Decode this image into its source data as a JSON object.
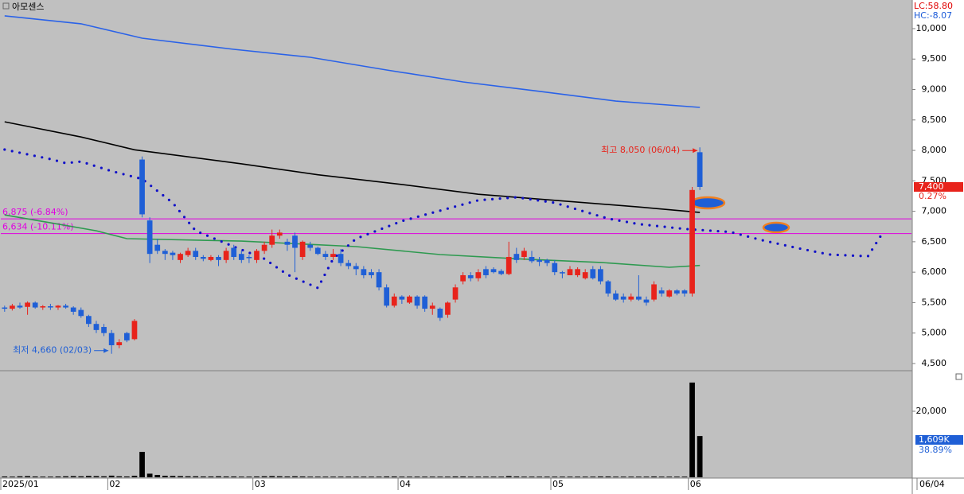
{
  "chart_data": {
    "type": "candlestick",
    "title": "아모센스",
    "legend": {
      "lc": "LC:58.80",
      "hc": "HC:-8.07",
      "lc_color": "#e00000",
      "hc_color": "#1a5ad8"
    },
    "categories": [
      "2025/01",
      null,
      null,
      null,
      null,
      null,
      null,
      null,
      null,
      null,
      null,
      null,
      null,
      null,
      "02",
      null,
      null,
      null,
      null,
      null,
      null,
      null,
      null,
      null,
      null,
      null,
      null,
      null,
      null,
      null,
      null,
      null,
      null,
      "03",
      null,
      null,
      null,
      null,
      null,
      null,
      null,
      null,
      null,
      null,
      null,
      null,
      null,
      null,
      null,
      null,
      null,
      null,
      "04",
      null,
      null,
      null,
      null,
      null,
      null,
      null,
      null,
      null,
      null,
      null,
      null,
      null,
      null,
      null,
      null,
      null,
      null,
      null,
      "05",
      null,
      null,
      null,
      null,
      null,
      null,
      null,
      null,
      null,
      null,
      null,
      null,
      null,
      null,
      null,
      null,
      null,
      "06",
      null
    ],
    "current_date": "06/04",
    "xlim": [
      -0.5,
      118.7
    ],
    "up_color": "#e8231b",
    "down_color": "#1f5fd6",
    "open": [
      5420,
      5400,
      5450,
      5430,
      5500,
      5420,
      5440,
      5420,
      5450,
      5420,
      5380,
      5280,
      5150,
      5100,
      5000,
      4800,
      5000,
      4900,
      7850,
      6850,
      6450,
      6350,
      6320,
      6200,
      6280,
      6350,
      6250,
      6200,
      6250,
      6200,
      6400,
      6300,
      6250,
      6200,
      6350,
      6450,
      6600,
      6500,
      6600,
      6250,
      6450,
      6400,
      6300,
      6250,
      6300,
      6150,
      6100,
      6050,
      6000,
      6000,
      5750,
      5450,
      5600,
      5500,
      5600,
      5600,
      5400,
      5400,
      5300,
      5550,
      5850,
      5950,
      5900,
      6050,
      6050,
      6020,
      5970,
      6300,
      6250,
      6250,
      6200,
      6200,
      6150,
      6000,
      5950,
      5950,
      5900,
      6050,
      6050,
      5850,
      5650,
      5600,
      5550,
      5600,
      5550,
      5550,
      5700,
      5600,
      5700,
      5700,
      5650,
      7970
    ],
    "high": [
      5450,
      5480,
      5500,
      5520,
      5520,
      5460,
      5480,
      5460,
      5480,
      5440,
      5420,
      5300,
      5200,
      5150,
      5050,
      4900,
      5020,
      5230,
      7900,
      6900,
      6550,
      6380,
      6350,
      6320,
      6400,
      6400,
      6280,
      6280,
      6280,
      6400,
      6450,
      6350,
      6280,
      6380,
      6500,
      6700,
      6700,
      6550,
      6650,
      6520,
      6500,
      6420,
      6350,
      6380,
      6380,
      6200,
      6150,
      6100,
      6050,
      6050,
      5800,
      5650,
      5620,
      5620,
      5620,
      5620,
      5500,
      5420,
      5520,
      5800,
      6000,
      6000,
      6050,
      6100,
      6080,
      6050,
      6500,
      6400,
      6400,
      6350,
      6250,
      6220,
      6200,
      6020,
      6100,
      6080,
      6050,
      6100,
      6100,
      5870,
      5700,
      5650,
      5650,
      5950,
      5600,
      5850,
      5750,
      5720,
      5720,
      5720,
      7400,
      8050
    ],
    "low": [
      5350,
      5370,
      5400,
      5300,
      5400,
      5380,
      5380,
      5380,
      5400,
      5300,
      5250,
      5100,
      5000,
      4950,
      4660,
      4750,
      4850,
      4880,
      6900,
      6150,
      6300,
      6200,
      6200,
      6150,
      6250,
      6200,
      6180,
      6180,
      6100,
      6150,
      6200,
      6150,
      6150,
      6150,
      6300,
      6400,
      6550,
      6350,
      6000,
      6200,
      6350,
      6280,
      6200,
      6200,
      6100,
      6050,
      5950,
      5900,
      5900,
      5700,
      5420,
      5420,
      5480,
      5480,
      5400,
      5350,
      5300,
      5200,
      5250,
      5500,
      5800,
      5850,
      5850,
      5900,
      5980,
      5950,
      5950,
      6150,
      6200,
      6150,
      6100,
      6100,
      5950,
      5900,
      5950,
      5920,
      5880,
      5880,
      5800,
      5600,
      5530,
      5500,
      5520,
      5530,
      5450,
      5520,
      5600,
      5580,
      5620,
      5600,
      5600,
      7350
    ],
    "close": [
      5400,
      5450,
      5420,
      5500,
      5420,
      5440,
      5420,
      5450,
      5420,
      5350,
      5280,
      5150,
      5050,
      5000,
      4800,
      4850,
      4880,
      5200,
      6950,
      6300,
      6350,
      6300,
      6280,
      6300,
      6350,
      6250,
      6220,
      6250,
      6200,
      6350,
      6250,
      6200,
      6230,
      6350,
      6450,
      6600,
      6650,
      6450,
      6400,
      6500,
      6400,
      6300,
      6250,
      6300,
      6150,
      6100,
      6050,
      5950,
      5950,
      5750,
      5450,
      5600,
      5550,
      5600,
      5450,
      5400,
      5450,
      5250,
      5500,
      5750,
      5950,
      5900,
      6000,
      5950,
      6000,
      5970,
      6250,
      6200,
      6350,
      6180,
      6170,
      6150,
      6000,
      5980,
      6050,
      6050,
      6000,
      5900,
      5850,
      5650,
      5550,
      5550,
      5600,
      5550,
      5500,
      5800,
      5650,
      5700,
      5650,
      5650,
      7350,
      7400
    ],
    "ylim": [
      4395,
      10470
    ],
    "yticks": [
      {
        "value": 4500,
        "label": "4,500"
      },
      {
        "value": 5000,
        "label": "5,000"
      },
      {
        "value": 5500,
        "label": "5,500"
      },
      {
        "value": 6000,
        "label": "6,000"
      },
      {
        "value": 6500,
        "label": "6,500"
      },
      {
        "value": 7000,
        "label": "7,000"
      },
      {
        "value": 7500,
        "label": "7,500"
      },
      {
        "value": 8000,
        "label": "8,000"
      },
      {
        "value": 8500,
        "label": "8,500"
      },
      {
        "value": 9000,
        "label": "9,000"
      },
      {
        "value": 9500,
        "label": "9,500"
      },
      {
        "value": 10000,
        "label": "10,000"
      }
    ],
    "lines": [
      {
        "color": "#2a62e8",
        "x": [
          0,
          10,
          18,
          30,
          40,
          50,
          60,
          70,
          80,
          91
        ],
        "values": [
          10210,
          10080,
          9843,
          9660,
          9530,
          9320,
          9125,
          8970,
          8810,
          8706
        ]
      },
      {
        "color": "#000000",
        "x": [
          0,
          10,
          17,
          31,
          41,
          52,
          62,
          72,
          83,
          91
        ],
        "values": [
          8470,
          8220,
          8010,
          7780,
          7600,
          7440,
          7280,
          7180,
          7070,
          6980
        ]
      },
      {
        "color": "#2e9a50",
        "x": [
          0,
          6,
          12,
          16,
          31,
          46,
          57,
          67,
          78,
          87,
          91
        ],
        "values": [
          6940,
          6810,
          6680,
          6550,
          6510,
          6420,
          6290,
          6220,
          6160,
          6080,
          6110
        ]
      },
      {
        "color": "#1010c8",
        "style": "dotted",
        "x": [
          0,
          6,
          8,
          10,
          14,
          18,
          22,
          25,
          30,
          34,
          37,
          41,
          43,
          46,
          52,
          57,
          62,
          67,
          72,
          79,
          83,
          89,
          95,
          99,
          104,
          108,
          113,
          115
        ],
        "values": [
          8014,
          7857,
          7790,
          7817,
          7660,
          7530,
          7140,
          6680,
          6420,
          6220,
          5960,
          5740,
          6220,
          6550,
          6840,
          7010,
          7180,
          7230,
          7140,
          6880,
          6790,
          6710,
          6660,
          6530,
          6390,
          6290,
          6260,
          6660
        ]
      }
    ],
    "hlines": [
      {
        "value": 6875,
        "label": "6,875 (-6.84%)"
      },
      {
        "value": 6634,
        "label": "6,634 (-10.11%)"
      }
    ],
    "hline_color": "#e000e0",
    "annotations": {
      "high": "최고 8,050 (06/04)",
      "low": "최저 4,660 (02/03)"
    },
    "price_label": "7,400",
    "price_change": "0.27%",
    "volume": {
      "values": [
        250,
        200,
        300,
        350,
        250,
        200,
        200,
        250,
        300,
        350,
        300,
        400,
        350,
        300,
        500,
        300,
        250,
        450,
        7700,
        1100,
        700,
        450,
        400,
        350,
        300,
        300,
        250,
        250,
        300,
        250,
        250,
        200,
        200,
        250,
        300,
        350,
        300,
        250,
        300,
        250,
        200,
        200,
        200,
        200,
        200,
        200,
        200,
        200,
        200,
        200,
        250,
        250,
        200,
        200,
        200,
        200,
        200,
        200,
        200,
        250,
        250,
        200,
        200,
        200,
        200,
        200,
        350,
        250,
        200,
        200,
        200,
        200,
        200,
        200,
        200,
        200,
        200,
        200,
        250,
        250,
        200,
        200,
        200,
        200,
        200,
        250,
        200,
        200,
        200,
        200,
        28700,
        12500
      ],
      "color": "#000000",
      "ylim": [
        0,
        32050
      ],
      "yticks": [
        {
          "value": 20000,
          "label": "20,000"
        }
      ],
      "label": "1,609K",
      "change": "38.89%"
    }
  }
}
